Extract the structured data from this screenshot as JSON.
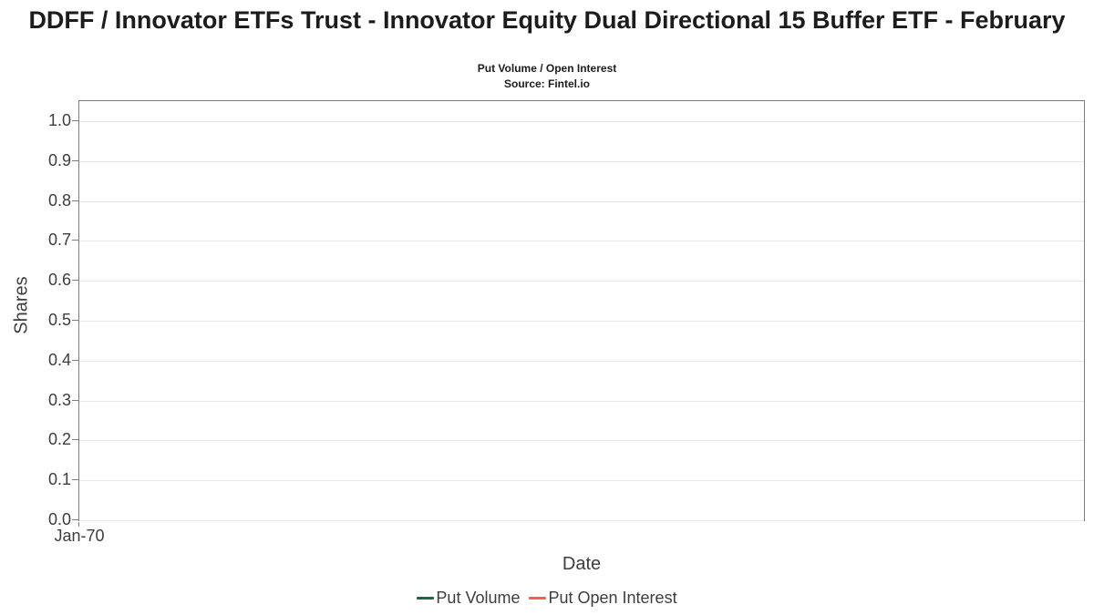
{
  "header": {
    "title": "DDFF / Innovator ETFs Trust - Innovator Equity Dual Directional 15 Buffer ETF - February",
    "subtitle": "Put Volume / Open Interest",
    "source": "Source: Fintel.io"
  },
  "chart_data": {
    "type": "line",
    "title": "DDFF / Innovator ETFs Trust - Innovator Equity Dual Directional 15 Buffer ETF - February",
    "subtitle": "Put Volume / Open Interest",
    "source": "Source: Fintel.io",
    "xlabel": "Date",
    "ylabel": "Shares",
    "ylim": [
      0.0,
      1.0
    ],
    "y_tick_step": 0.1,
    "y_ticks": [
      "1.0",
      "0.9",
      "0.8",
      "0.7",
      "0.6",
      "0.5",
      "0.4",
      "0.3",
      "0.2",
      "0.1",
      "0.0"
    ],
    "x_ticks": [
      "Jan-70"
    ],
    "grid": true,
    "legend_position": "bottom",
    "series": [
      {
        "name": "Put Volume",
        "color": "#2a6144",
        "x": [],
        "values": []
      },
      {
        "name": "Put Open Interest",
        "color": "#f85c55",
        "x": [],
        "values": []
      }
    ]
  },
  "colors": {
    "title_text": "#1c1c1c",
    "axis_text": "#3d3d3d",
    "gridline": "#e7e7e7",
    "plot_border": "#7d7d7d",
    "put_volume": "#2a6144",
    "put_open_interest": "#f85c55",
    "background": "#ffffff"
  }
}
